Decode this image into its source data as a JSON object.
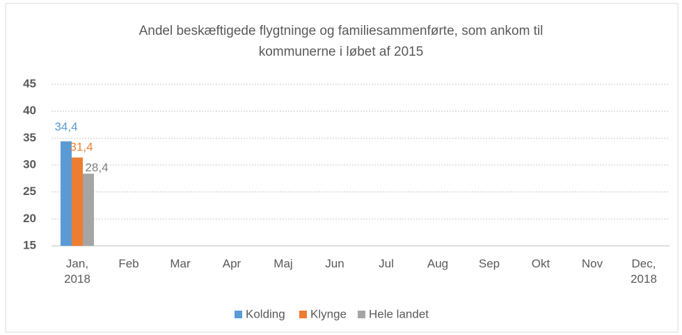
{
  "chart_data": {
    "type": "bar",
    "title": "Andel beskæftigede flygtninge og familiesammenførte, som ankom til kommunerne i løbet af 2015",
    "categories": [
      "Jan, 2018",
      "Feb",
      "Mar",
      "Apr",
      "Maj",
      "Jun",
      "Jul",
      "Aug",
      "Sep",
      "Okt",
      "Nov",
      "Dec, 2018"
    ],
    "series": [
      {
        "name": "Kolding",
        "color": "#5b9bd5",
        "values": [
          34.4,
          null,
          null,
          null,
          null,
          null,
          null,
          null,
          null,
          null,
          null,
          null
        ],
        "value_labels": [
          "34,4",
          null,
          null,
          null,
          null,
          null,
          null,
          null,
          null,
          null,
          null,
          null
        ]
      },
      {
        "name": "Klynge",
        "color": "#ed7d31",
        "values": [
          31.4,
          null,
          null,
          null,
          null,
          null,
          null,
          null,
          null,
          null,
          null,
          null
        ],
        "value_labels": [
          "31,4",
          null,
          null,
          null,
          null,
          null,
          null,
          null,
          null,
          null,
          null,
          null
        ]
      },
      {
        "name": "Hele landet",
        "color": "#a5a5a5",
        "values": [
          28.4,
          null,
          null,
          null,
          null,
          null,
          null,
          null,
          null,
          null,
          null,
          null
        ],
        "value_labels": [
          "28,4",
          null,
          null,
          null,
          null,
          null,
          null,
          null,
          null,
          null,
          null,
          null
        ]
      }
    ],
    "ylim": [
      15,
      45
    ],
    "yticks": [
      15,
      20,
      25,
      30,
      35,
      40,
      45
    ],
    "grid": true,
    "legend": "bottom"
  }
}
